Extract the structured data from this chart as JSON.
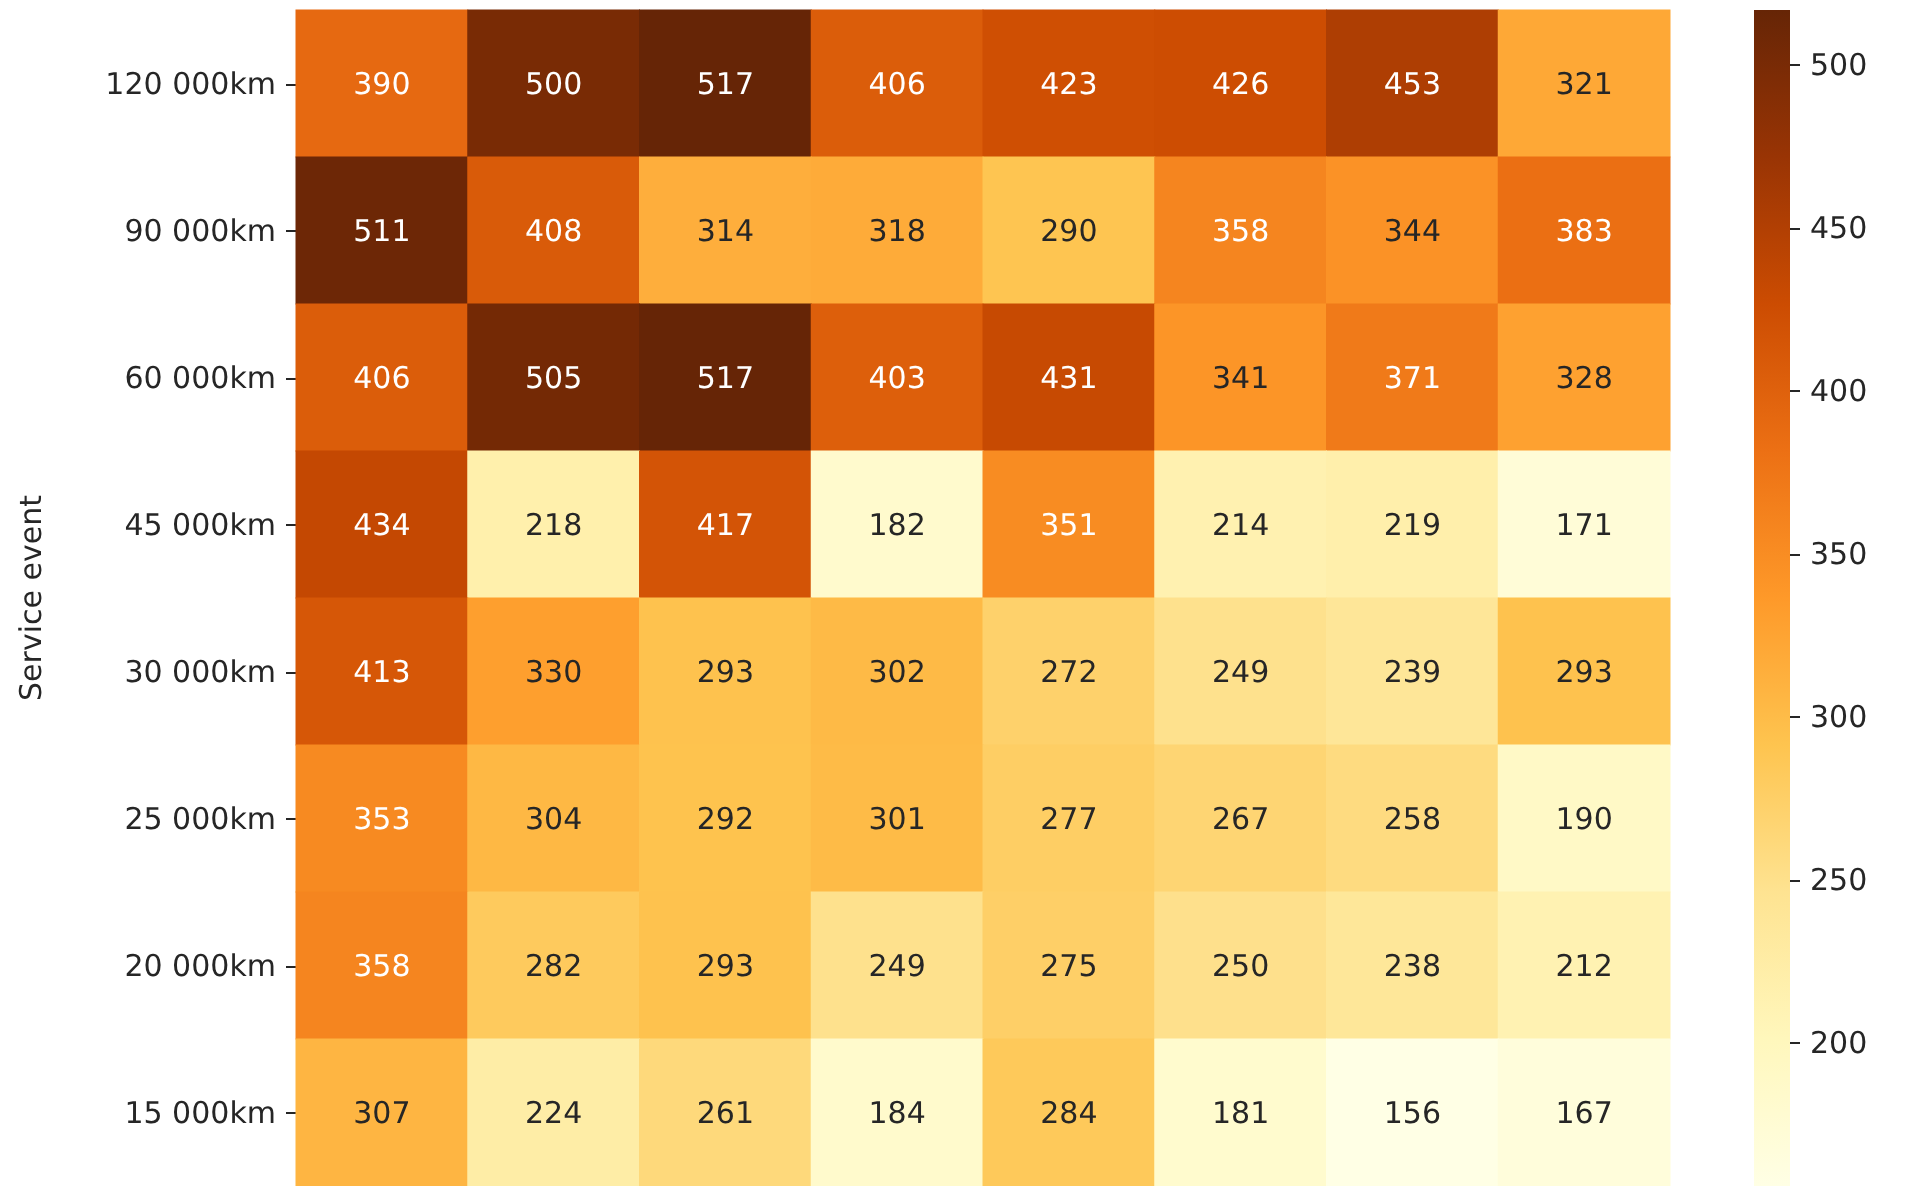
{
  "chart_data": {
    "type": "heatmap",
    "ylabel": "Service event",
    "categories": [
      null,
      null,
      null,
      null,
      null,
      null,
      null,
      null
    ],
    "y_categories": [
      "120 000km",
      "90 000km",
      "60 000km",
      "45 000km",
      "30 000km",
      "25 000km",
      "20 000km",
      "15 000km"
    ],
    "cells": [
      [
        390,
        500,
        517,
        406,
        423,
        426,
        453,
        321
      ],
      [
        511,
        408,
        314,
        318,
        290,
        358,
        344,
        383
      ],
      [
        406,
        505,
        517,
        403,
        431,
        341,
        371,
        328
      ],
      [
        434,
        218,
        417,
        182,
        351,
        214,
        219,
        171
      ],
      [
        413,
        330,
        293,
        302,
        272,
        249,
        239,
        293
      ],
      [
        353,
        304,
        292,
        301,
        277,
        267,
        258,
        190
      ],
      [
        358,
        282,
        293,
        249,
        275,
        250,
        238,
        212
      ],
      [
        307,
        224,
        261,
        184,
        284,
        181,
        156,
        167
      ]
    ],
    "data_labels": true,
    "clim": [
      156,
      517
    ],
    "cticks": [
      200,
      250,
      300,
      350,
      400,
      450,
      500
    ]
  }
}
